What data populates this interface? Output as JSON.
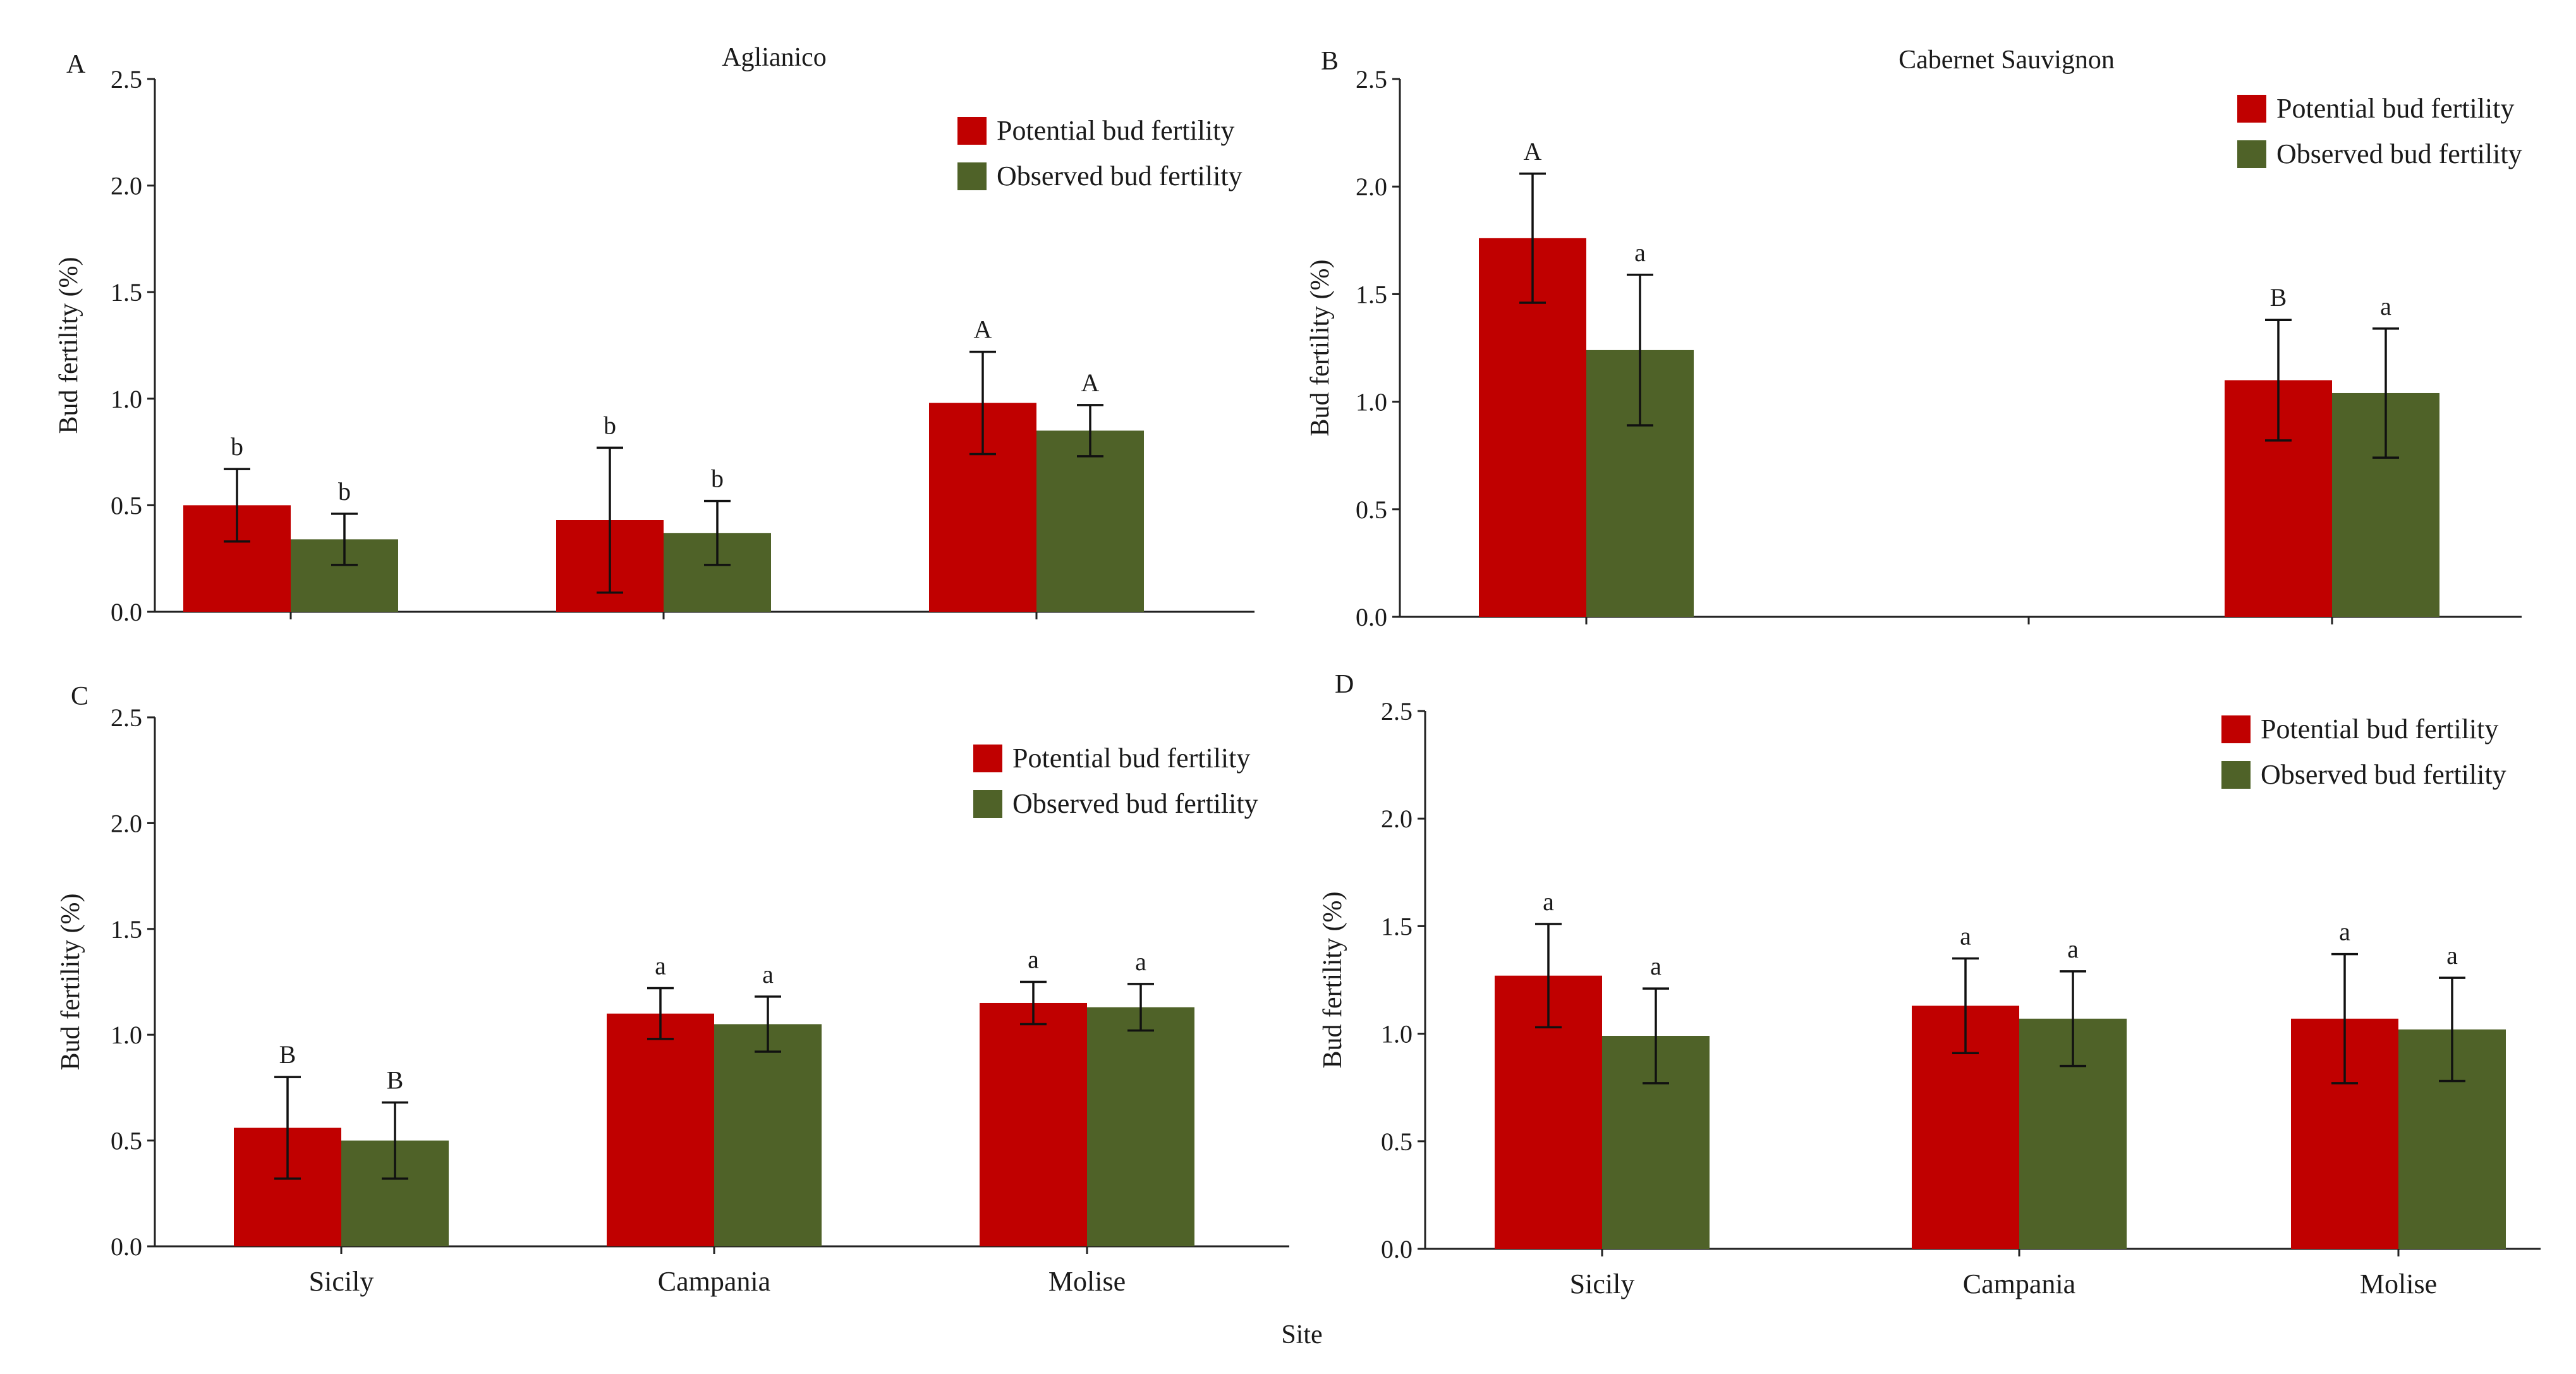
{
  "x_axis_title": "Site",
  "colors": {
    "potential": "#c00000",
    "observed": "#4f6228",
    "axis": "#222222"
  },
  "chart_data": [
    {
      "type": "bar",
      "panel": "A",
      "title": "Aglianico",
      "xlabel": "",
      "ylabel": "Bud fertility (%)",
      "ylim": [
        0,
        2.5
      ],
      "yticks": [
        "0.0",
        "0.5",
        "1.0",
        "1.5",
        "2.0",
        "2.5"
      ],
      "legend_position": "top-right",
      "categories": [
        "Sicily",
        "Campania",
        "Molise"
      ],
      "show_category_labels": false,
      "series": [
        {
          "name": "Potential bud fertility",
          "values": [
            0.5,
            0.43,
            0.98
          ],
          "errors": [
            0.17,
            0.34,
            0.24
          ],
          "labels": [
            "b",
            "b",
            "A"
          ]
        },
        {
          "name": "Observed bud fertility",
          "values": [
            0.34,
            0.37,
            0.85
          ],
          "errors": [
            0.12,
            0.15,
            0.12
          ],
          "labels": [
            "b",
            "b",
            "A"
          ]
        }
      ]
    },
    {
      "type": "bar",
      "panel": "B",
      "title": "Cabernet Sauvignon",
      "xlabel": "",
      "ylabel": "Bud fertility (%)",
      "ylim": [
        0,
        2.5
      ],
      "yticks": [
        "0.0",
        "0.5",
        "1.0",
        "1.5",
        "2.0",
        "2.5"
      ],
      "legend_position": "top-right",
      "categories": [
        "Sicily",
        "Campania",
        "Molise"
      ],
      "show_category_labels": false,
      "series": [
        {
          "name": "Potential bud fertility",
          "values": [
            1.76,
            null,
            1.1
          ],
          "errors": [
            0.3,
            null,
            0.28
          ],
          "labels": [
            "A",
            "",
            "B"
          ]
        },
        {
          "name": "Observed bud fertility",
          "values": [
            1.24,
            null,
            1.04
          ],
          "errors": [
            0.35,
            null,
            0.3
          ],
          "labels": [
            "a",
            "",
            "a"
          ]
        }
      ]
    },
    {
      "type": "bar",
      "panel": "C",
      "title": "",
      "xlabel": "",
      "ylabel": "Bud fertility (%)",
      "ylim": [
        0,
        2.5
      ],
      "yticks": [
        "0.0",
        "0.5",
        "1.0",
        "1.5",
        "2.0",
        "2.5"
      ],
      "legend_position": "top-right",
      "categories": [
        "Sicily",
        "Campania",
        "Molise"
      ],
      "show_category_labels": true,
      "series": [
        {
          "name": "Potential bud fertility",
          "values": [
            0.56,
            1.1,
            1.15
          ],
          "errors": [
            0.24,
            0.12,
            0.1
          ],
          "labels": [
            "B",
            "a",
            "a"
          ]
        },
        {
          "name": "Observed bud fertility",
          "values": [
            0.5,
            1.05,
            1.13
          ],
          "errors": [
            0.18,
            0.13,
            0.11
          ],
          "labels": [
            "B",
            "a",
            "a"
          ]
        }
      ]
    },
    {
      "type": "bar",
      "panel": "D",
      "title": "",
      "xlabel": "",
      "ylabel": "Bud fertility (%)",
      "ylim": [
        0,
        2.5
      ],
      "yticks": [
        "0.0",
        "0.5",
        "1.0",
        "1.5",
        "2.0",
        "2.5"
      ],
      "legend_position": "top-right",
      "categories": [
        "Sicily",
        "Campania",
        "Molise"
      ],
      "show_category_labels": true,
      "series": [
        {
          "name": "Potential bud fertility",
          "values": [
            1.27,
            1.13,
            1.07
          ],
          "errors": [
            0.24,
            0.22,
            0.3
          ],
          "labels": [
            "a",
            "a",
            "a"
          ]
        },
        {
          "name": "Observed bud fertility",
          "values": [
            0.99,
            1.07,
            1.02
          ],
          "errors": [
            0.22,
            0.22,
            0.24
          ],
          "labels": [
            "a",
            "a",
            "a"
          ]
        }
      ]
    }
  ]
}
